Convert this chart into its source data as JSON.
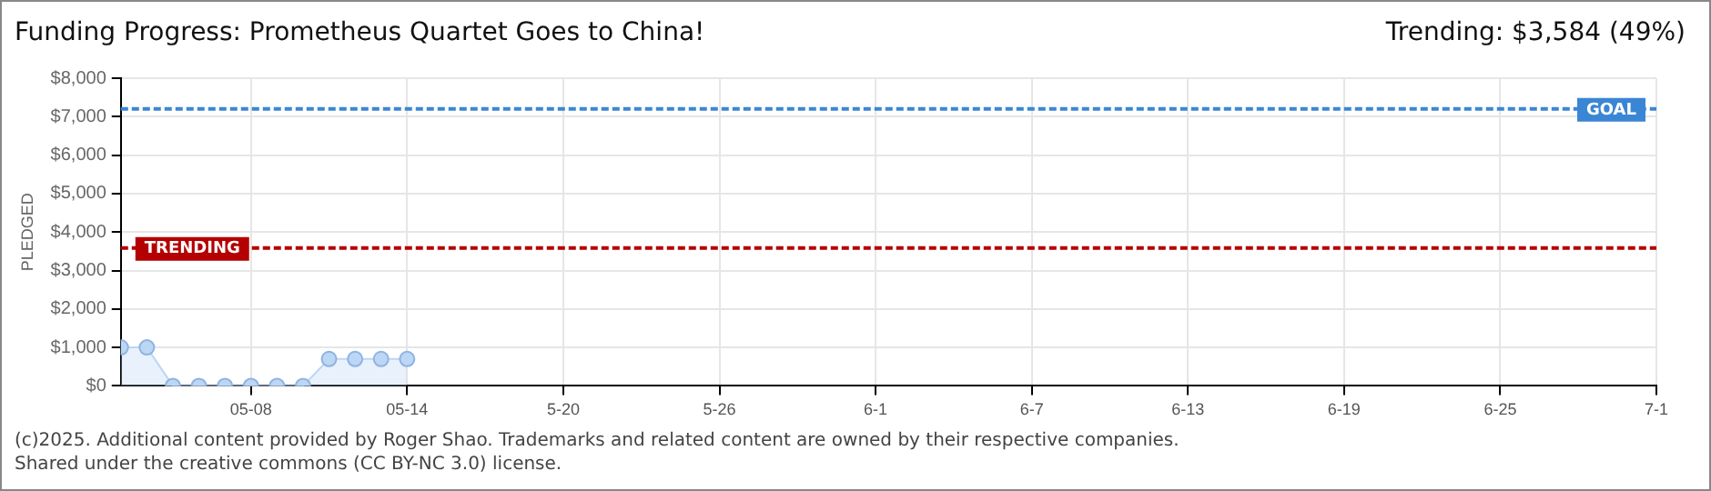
{
  "chart_data": {
    "type": "area",
    "title": "Funding Progress: Prometheus Quartet Goes to China!",
    "subtitle": "Trending: $3,584 (49%)",
    "ylabel": "PLEDGED",
    "x": [
      "--05-03",
      "--05-04",
      "--05-05",
      "--05-06",
      "--05-07",
      "--05-08",
      "--05-09",
      "--05-10",
      "--05-11",
      "--05-12",
      "--05-13",
      "--05-14"
    ],
    "series": [
      {
        "color": "#bcd6f5",
        "values": [
          1000,
          1000,
          0,
          0,
          0,
          0,
          0,
          0,
          700,
          700,
          700,
          700
        ]
      }
    ],
    "xlim": [
      "--05-03",
      "--07-01"
    ],
    "xticks": [
      {
        "value": "--05-08",
        "label": "05-08"
      },
      {
        "value": "--05-14",
        "label": "05-14"
      },
      {
        "value": "--05-20",
        "label": "5-20"
      },
      {
        "value": "--05-26",
        "label": "5-26"
      },
      {
        "value": "--06-01",
        "label": "6-1"
      },
      {
        "value": "--06-07",
        "label": "6-7"
      },
      {
        "value": "--06-13",
        "label": "6-13"
      },
      {
        "value": "--06-19",
        "label": "6-19"
      },
      {
        "value": "--06-25",
        "label": "6-25"
      },
      {
        "value": "--07-01",
        "label": "7-1"
      }
    ],
    "ylim": [
      0,
      8000
    ],
    "yticks": [
      {
        "value": 0,
        "label": "$0"
      },
      {
        "value": 1000,
        "label": "$1,000"
      },
      {
        "value": 2000,
        "label": "$2,000"
      },
      {
        "value": 3000,
        "label": "$3,000"
      },
      {
        "value": 4000,
        "label": "$4,000"
      },
      {
        "value": 5000,
        "label": "$5,000"
      },
      {
        "value": 6000,
        "label": "$6,000"
      },
      {
        "value": 7000,
        "label": "$7,000"
      },
      {
        "value": 8000,
        "label": "$8,000"
      }
    ],
    "ref_lines": [
      {
        "axis": "y",
        "value": 7200,
        "label": "GOAL",
        "color": "#3a86d4",
        "line_style": "dashed"
      },
      {
        "axis": "y",
        "value": 3584,
        "label": "TRENDING",
        "color": "#b40000",
        "line_style": "dashed"
      }
    ],
    "grid": true,
    "legend": false,
    "marker": "circle",
    "annotations": [
      "(c)2025. Additional content provided by Roger Shao. Trademarks and related content are owned by their respective companies.",
      "Shared under the creative commons (CC BY-NC 3.0) license."
    ]
  }
}
